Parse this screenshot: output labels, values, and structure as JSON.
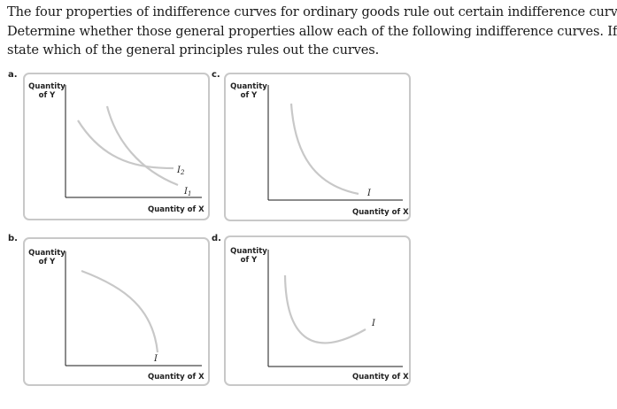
{
  "question": {
    "lines": [
      "The four properties of indifference curves for ordinary goods rule out certain indifference curves.",
      "Determine whether those general properties allow each of the following indifference curves. If not,",
      "state which of the general principles rules out the curves."
    ]
  },
  "panels": {
    "a": {
      "letter": "a.",
      "ylabel_line1": "Quantity",
      "ylabel_line2": "of Y",
      "xlabel": "Quantity of X",
      "curve_label_1": "I",
      "curve_label_1_sub": "2",
      "curve_label_2": "I",
      "curve_label_2_sub": "1"
    },
    "b": {
      "letter": "b.",
      "ylabel_line1": "Quantity",
      "ylabel_line2": "of Y",
      "xlabel": "Quantity of X",
      "curve_label": "I"
    },
    "c": {
      "letter": "c.",
      "ylabel_line1": "Quantity",
      "ylabel_line2": "of Y",
      "xlabel": "Quantity of X",
      "curve_label": "I"
    },
    "d": {
      "letter": "d.",
      "ylabel_line1": "Quantity",
      "ylabel_line2": "of Y",
      "xlabel": "Quantity of X",
      "curve_label": "I"
    }
  },
  "colors": {
    "curve": "#c8c8c8",
    "axis": "#1a1a1a",
    "panel_border": "#c8c8c8"
  }
}
